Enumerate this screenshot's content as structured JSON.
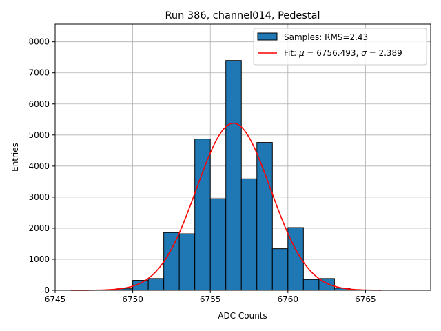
{
  "chart_data": {
    "type": "bar",
    "title": "Run 386, channel014, Pedestal",
    "xlabel": "ADC Counts",
    "ylabel": "Entries",
    "xlim": [
      6745,
      6769.2
    ],
    "ylim": [
      0,
      8570
    ],
    "x_ticks": [
      6745,
      6750,
      6755,
      6760,
      6765
    ],
    "x_tick_labels": [
      "6745",
      "6750",
      "6755",
      "6760",
      "6765"
    ],
    "y_ticks": [
      0,
      1000,
      2000,
      3000,
      4000,
      5000,
      6000,
      7000,
      8000
    ],
    "y_tick_labels": [
      "0",
      "1000",
      "2000",
      "3000",
      "4000",
      "5000",
      "6000",
      "7000",
      "8000"
    ],
    "grid": true,
    "legend_position": "top-right",
    "histogram": {
      "name": "Samples: RMS=2.43",
      "color": "#1f77b4",
      "edge_color": "#000000",
      "bin_edges": [
        6749,
        6750,
        6751,
        6752,
        6753,
        6754,
        6755,
        6756,
        6757,
        6758,
        6759,
        6760,
        6761,
        6762,
        6763,
        6764
      ],
      "counts": [
        50,
        320,
        380,
        1860,
        1820,
        4870,
        2950,
        7400,
        3590,
        4760,
        1340,
        2020,
        350,
        380,
        70
      ]
    },
    "fit": {
      "name_prefix": "Fit: ",
      "mu_symbol": "μ",
      "mu_value": " = 6756.493, ",
      "sigma_symbol": "σ",
      "sigma_value": " = 2.389",
      "color": "#ff0000",
      "mu": 6756.493,
      "sigma": 2.389,
      "amplitude": 5380,
      "x_range": [
        6746,
        6766
      ]
    }
  }
}
